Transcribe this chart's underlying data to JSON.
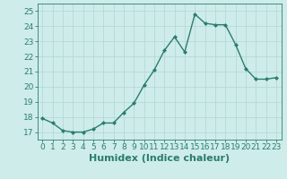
{
  "x": [
    0,
    1,
    2,
    3,
    4,
    5,
    6,
    7,
    8,
    9,
    10,
    11,
    12,
    13,
    14,
    15,
    16,
    17,
    18,
    19,
    20,
    21,
    22,
    23
  ],
  "y": [
    17.9,
    17.6,
    17.1,
    17.0,
    17.0,
    17.2,
    17.6,
    17.6,
    18.3,
    18.9,
    20.1,
    21.1,
    22.4,
    23.3,
    22.3,
    24.8,
    24.2,
    24.1,
    24.1,
    22.8,
    21.2,
    20.5,
    20.5,
    20.6
  ],
  "line_color": "#2a7d6e",
  "marker": "D",
  "marker_size": 2.0,
  "bg_color": "#ceecea",
  "grid_color": "#b5d9d5",
  "xlabel": "Humidex (Indice chaleur)",
  "ylim": [
    16.5,
    25.5
  ],
  "yticks": [
    17,
    18,
    19,
    20,
    21,
    22,
    23,
    24,
    25
  ],
  "xticks": [
    0,
    1,
    2,
    3,
    4,
    5,
    6,
    7,
    8,
    9,
    10,
    11,
    12,
    13,
    14,
    15,
    16,
    17,
    18,
    19,
    20,
    21,
    22,
    23
  ],
  "tick_color": "#2a7d6e",
  "label_color": "#2a7d6e",
  "tick_fontsize": 6.5,
  "xlabel_fontsize": 8.0,
  "linewidth": 1.0,
  "xlim": [
    -0.5,
    23.5
  ]
}
